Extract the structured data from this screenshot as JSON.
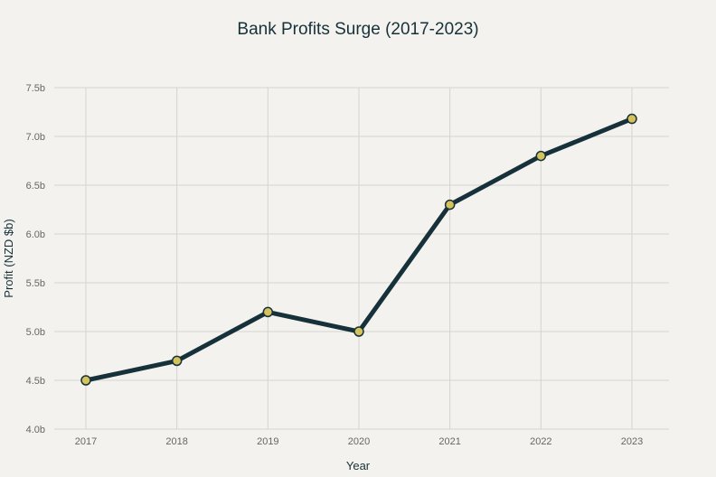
{
  "chart_data": {
    "type": "line",
    "title": "Bank Profits Surge (2017-2023)",
    "xlabel": "Year",
    "ylabel": "Profit (NZD $b)",
    "categories": [
      "2017",
      "2018",
      "2019",
      "2020",
      "2021",
      "2022",
      "2023"
    ],
    "series": [
      {
        "values": [
          4.5,
          4.7,
          5.2,
          5.0,
          6.3,
          6.8,
          7.18
        ]
      }
    ],
    "ylim": [
      4.0,
      7.5
    ],
    "y_ticks": [
      "4.0b",
      "4.5b",
      "5.0b",
      "5.5b",
      "6.0b",
      "6.5b",
      "7.0b",
      "7.5b"
    ],
    "grid": true,
    "colors": {
      "background": "#f3f2ee",
      "line": "#17313a",
      "marker_fill": "#d4c35a",
      "marker_stroke": "#17313a",
      "grid": "#d4d4d0",
      "title": "#17313a",
      "tick": "#666666"
    }
  }
}
